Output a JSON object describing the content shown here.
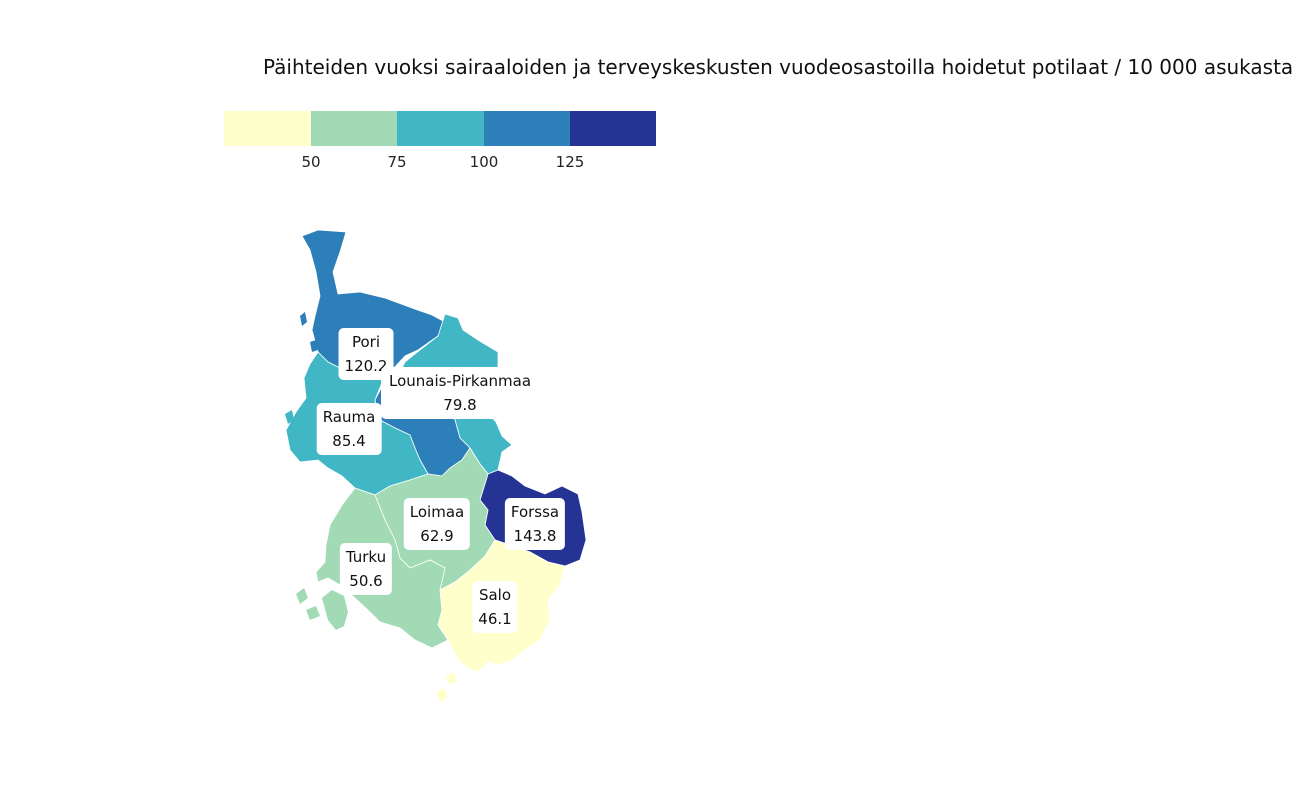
{
  "title": "Päihteiden vuoksi sairaaloiden ja terveyskeskusten vuodeosastoilla hoidetut potilaat / 10 000 asukasta",
  "legend": {
    "colors": [
      "#ffffcc",
      "#a1dab4",
      "#41b6c4",
      "#2c7fb8",
      "#253494"
    ],
    "ticks": [
      "50",
      "75",
      "100",
      "125"
    ]
  },
  "regions": [
    {
      "name": "Pori",
      "value": "120.2",
      "color": "#2c7fb8"
    },
    {
      "name": "Lounais-Pirkanmaa",
      "value": "79.8",
      "color": "#41b6c4"
    },
    {
      "name": "Rauma",
      "value": "85.4",
      "color": "#41b6c4"
    },
    {
      "name": "Loimaa",
      "value": "62.9",
      "color": "#a1dab4"
    },
    {
      "name": "Forssa",
      "value": "143.8",
      "color": "#253494"
    },
    {
      "name": "Turku",
      "value": "50.6",
      "color": "#a1dab4"
    },
    {
      "name": "Salo",
      "value": "46.1",
      "color": "#ffffcc"
    }
  ]
}
